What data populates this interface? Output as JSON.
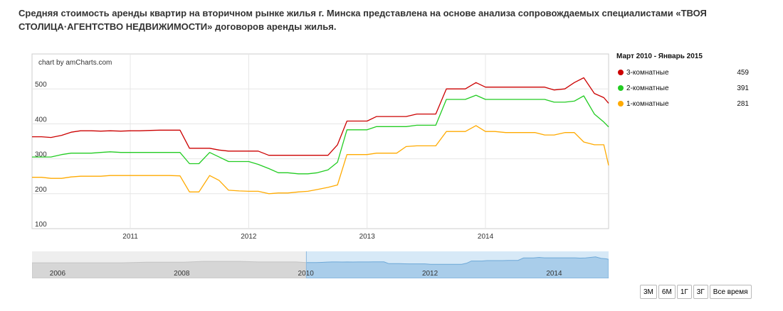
{
  "heading": "Средняя стоимость аренды квартир на вторичном рынке жилья г. Минска представлена на основе анализа сопровождаемых специалистами «ТВОЯ СТОЛИЦА·АГЕНТСТВО НЕДВИЖИМОСТИ» договоров аренды жилья.",
  "credit": "chart by amCharts.com",
  "legend": {
    "title": "Март 2010 - Январь 2015",
    "items": [
      {
        "name": "3-комнатные",
        "value": "459",
        "color": "#cc0000"
      },
      {
        "name": "2-комнатные",
        "value": "391",
        "color": "#22cc22"
      },
      {
        "name": "1-комнатные",
        "value": "281",
        "color": "#ffaa00"
      }
    ]
  },
  "period_buttons": [
    "3М",
    "6М",
    "1Г",
    "3Г",
    "Все время"
  ],
  "chart_data": {
    "type": "line",
    "grid": true,
    "y_ticks": [
      "100",
      "200",
      "300",
      "400",
      "500"
    ],
    "ylim": [
      100,
      600
    ],
    "x_ticks": [
      "2011",
      "2012",
      "2013",
      "2014"
    ],
    "x_tick_values": [
      2011.0,
      2012.0,
      2013.0,
      2014.0
    ],
    "xlim": [
      2010.17,
      2015.04
    ],
    "series": [
      {
        "name": "3-комнатные",
        "color": "#cc0000",
        "points": [
          [
            2010.17,
            363
          ],
          [
            2010.25,
            363
          ],
          [
            2010.33,
            361
          ],
          [
            2010.42,
            367
          ],
          [
            2010.5,
            376
          ],
          [
            2010.58,
            380
          ],
          [
            2010.67,
            380
          ],
          [
            2010.75,
            379
          ],
          [
            2010.83,
            380
          ],
          [
            2010.92,
            379
          ],
          [
            2011.0,
            380
          ],
          [
            2011.08,
            380
          ],
          [
            2011.17,
            381
          ],
          [
            2011.25,
            382
          ],
          [
            2011.33,
            382
          ],
          [
            2011.42,
            382
          ],
          [
            2011.5,
            330
          ],
          [
            2011.58,
            330
          ],
          [
            2011.67,
            330
          ],
          [
            2011.75,
            325
          ],
          [
            2011.83,
            322
          ],
          [
            2011.92,
            322
          ],
          [
            2012.0,
            322
          ],
          [
            2012.08,
            322
          ],
          [
            2012.17,
            310
          ],
          [
            2012.25,
            310
          ],
          [
            2012.33,
            310
          ],
          [
            2012.42,
            310
          ],
          [
            2012.5,
            310
          ],
          [
            2012.58,
            310
          ],
          [
            2012.67,
            310
          ],
          [
            2012.75,
            340
          ],
          [
            2012.83,
            408
          ],
          [
            2012.92,
            408
          ],
          [
            2013.0,
            408
          ],
          [
            2013.08,
            421
          ],
          [
            2013.17,
            421
          ],
          [
            2013.25,
            421
          ],
          [
            2013.33,
            421
          ],
          [
            2013.42,
            428
          ],
          [
            2013.5,
            428
          ],
          [
            2013.58,
            428
          ],
          [
            2013.67,
            500
          ],
          [
            2013.75,
            500
          ],
          [
            2013.83,
            500
          ],
          [
            2013.92,
            518
          ],
          [
            2014.0,
            505
          ],
          [
            2014.08,
            505
          ],
          [
            2014.17,
            505
          ],
          [
            2014.25,
            505
          ],
          [
            2014.33,
            505
          ],
          [
            2014.42,
            505
          ],
          [
            2014.5,
            505
          ],
          [
            2014.58,
            497
          ],
          [
            2014.67,
            500
          ],
          [
            2014.75,
            518
          ],
          [
            2014.83,
            532
          ],
          [
            2014.92,
            487
          ],
          [
            2015.0,
            475
          ],
          [
            2015.04,
            459
          ]
        ]
      },
      {
        "name": "2-комнатные",
        "color": "#22cc22",
        "points": [
          [
            2010.17,
            305
          ],
          [
            2010.25,
            305
          ],
          [
            2010.33,
            305
          ],
          [
            2010.42,
            312
          ],
          [
            2010.5,
            316
          ],
          [
            2010.58,
            316
          ],
          [
            2010.67,
            316
          ],
          [
            2010.75,
            318
          ],
          [
            2010.83,
            320
          ],
          [
            2010.92,
            318
          ],
          [
            2011.0,
            318
          ],
          [
            2011.08,
            318
          ],
          [
            2011.17,
            318
          ],
          [
            2011.25,
            318
          ],
          [
            2011.33,
            318
          ],
          [
            2011.42,
            318
          ],
          [
            2011.5,
            286
          ],
          [
            2011.58,
            286
          ],
          [
            2011.67,
            318
          ],
          [
            2011.75,
            305
          ],
          [
            2011.83,
            292
          ],
          [
            2011.92,
            292
          ],
          [
            2012.0,
            292
          ],
          [
            2012.08,
            284
          ],
          [
            2012.17,
            272
          ],
          [
            2012.25,
            260
          ],
          [
            2012.33,
            260
          ],
          [
            2012.42,
            257
          ],
          [
            2012.5,
            257
          ],
          [
            2012.58,
            260
          ],
          [
            2012.67,
            268
          ],
          [
            2012.75,
            290
          ],
          [
            2012.83,
            383
          ],
          [
            2012.92,
            383
          ],
          [
            2013.0,
            383
          ],
          [
            2013.08,
            392
          ],
          [
            2013.17,
            392
          ],
          [
            2013.25,
            392
          ],
          [
            2013.33,
            392
          ],
          [
            2013.42,
            396
          ],
          [
            2013.5,
            396
          ],
          [
            2013.58,
            396
          ],
          [
            2013.67,
            470
          ],
          [
            2013.75,
            470
          ],
          [
            2013.83,
            470
          ],
          [
            2013.92,
            482
          ],
          [
            2014.0,
            470
          ],
          [
            2014.08,
            470
          ],
          [
            2014.17,
            470
          ],
          [
            2014.25,
            470
          ],
          [
            2014.33,
            470
          ],
          [
            2014.42,
            470
          ],
          [
            2014.5,
            470
          ],
          [
            2014.58,
            462
          ],
          [
            2014.67,
            462
          ],
          [
            2014.75,
            465
          ],
          [
            2014.83,
            480
          ],
          [
            2014.92,
            428
          ],
          [
            2015.0,
            405
          ],
          [
            2015.04,
            391
          ]
        ]
      },
      {
        "name": "1-комнатные",
        "color": "#ffaa00",
        "points": [
          [
            2010.17,
            247
          ],
          [
            2010.25,
            247
          ],
          [
            2010.33,
            244
          ],
          [
            2010.42,
            244
          ],
          [
            2010.5,
            248
          ],
          [
            2010.58,
            250
          ],
          [
            2010.67,
            250
          ],
          [
            2010.75,
            250
          ],
          [
            2010.83,
            252
          ],
          [
            2010.92,
            252
          ],
          [
            2011.0,
            252
          ],
          [
            2011.08,
            252
          ],
          [
            2011.17,
            252
          ],
          [
            2011.25,
            252
          ],
          [
            2011.33,
            252
          ],
          [
            2011.42,
            251
          ],
          [
            2011.5,
            205
          ],
          [
            2011.58,
            205
          ],
          [
            2011.67,
            252
          ],
          [
            2011.75,
            238
          ],
          [
            2011.83,
            210
          ],
          [
            2011.92,
            208
          ],
          [
            2012.0,
            207
          ],
          [
            2012.08,
            207
          ],
          [
            2012.17,
            200
          ],
          [
            2012.25,
            202
          ],
          [
            2012.33,
            202
          ],
          [
            2012.42,
            205
          ],
          [
            2012.5,
            207
          ],
          [
            2012.58,
            212
          ],
          [
            2012.67,
            218
          ],
          [
            2012.75,
            225
          ],
          [
            2012.83,
            312
          ],
          [
            2012.92,
            312
          ],
          [
            2013.0,
            312
          ],
          [
            2013.08,
            316
          ],
          [
            2013.17,
            316
          ],
          [
            2013.25,
            316
          ],
          [
            2013.33,
            335
          ],
          [
            2013.42,
            337
          ],
          [
            2013.5,
            337
          ],
          [
            2013.58,
            337
          ],
          [
            2013.67,
            378
          ],
          [
            2013.75,
            378
          ],
          [
            2013.83,
            378
          ],
          [
            2013.92,
            395
          ],
          [
            2014.0,
            378
          ],
          [
            2014.08,
            378
          ],
          [
            2014.17,
            375
          ],
          [
            2014.25,
            375
          ],
          [
            2014.33,
            375
          ],
          [
            2014.42,
            375
          ],
          [
            2014.5,
            368
          ],
          [
            2014.58,
            368
          ],
          [
            2014.67,
            375
          ],
          [
            2014.75,
            375
          ],
          [
            2014.83,
            348
          ],
          [
            2014.92,
            340
          ],
          [
            2015.0,
            340
          ],
          [
            2015.04,
            281
          ]
        ]
      }
    ]
  },
  "scroller": {
    "labels": [
      "2006",
      "2008",
      "2010",
      "2012",
      "2014"
    ],
    "label_years": [
      2006,
      2008,
      2010,
      2012,
      2014
    ],
    "xlim": [
      2005.75,
      2015.04
    ],
    "selected_range": [
      2010.17,
      2015.04
    ],
    "background_color": "#eeeeee",
    "selected_color": "#d7e9f7"
  }
}
